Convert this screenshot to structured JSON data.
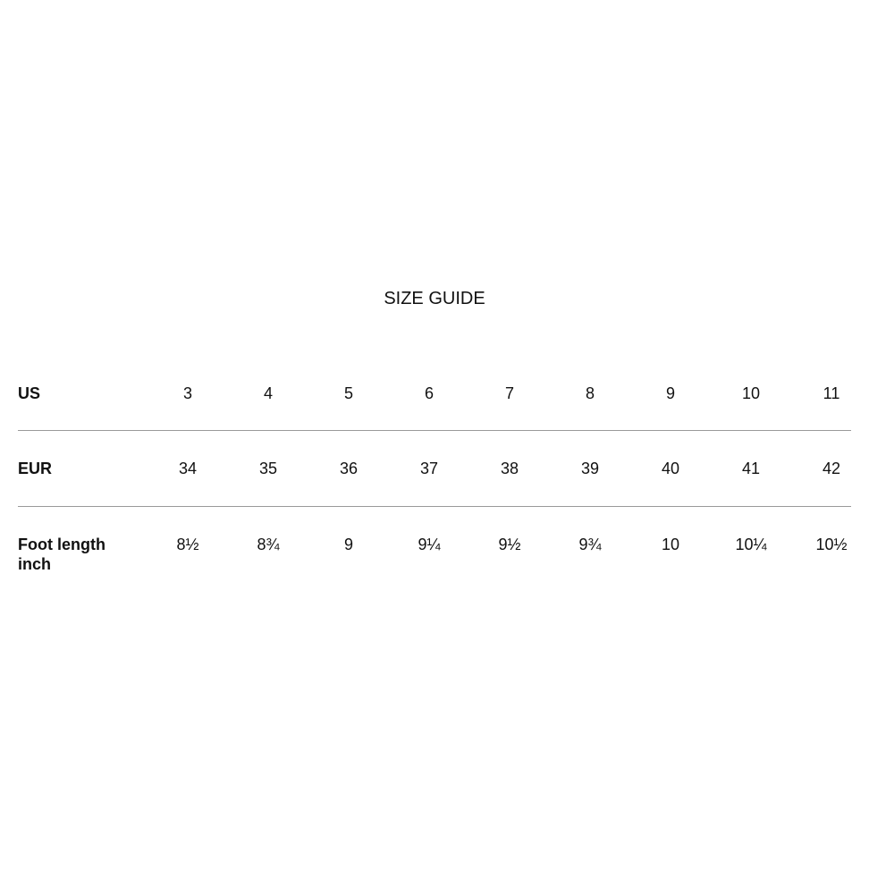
{
  "title": "SIZE GUIDE",
  "rows": [
    {
      "label": "US",
      "values": [
        "3",
        "4",
        "5",
        "6",
        "7",
        "8",
        "9",
        "10",
        "11"
      ]
    },
    {
      "label": "EUR",
      "values": [
        "34",
        "35",
        "36",
        "37",
        "38",
        "39",
        "40",
        "41",
        "42"
      ]
    },
    {
      "label": "Foot length",
      "label_line2": "inch",
      "values": [
        "8½",
        "8¾",
        "9",
        "9¼",
        "9½",
        "9¾",
        "10",
        "10¼",
        "10½"
      ]
    }
  ]
}
